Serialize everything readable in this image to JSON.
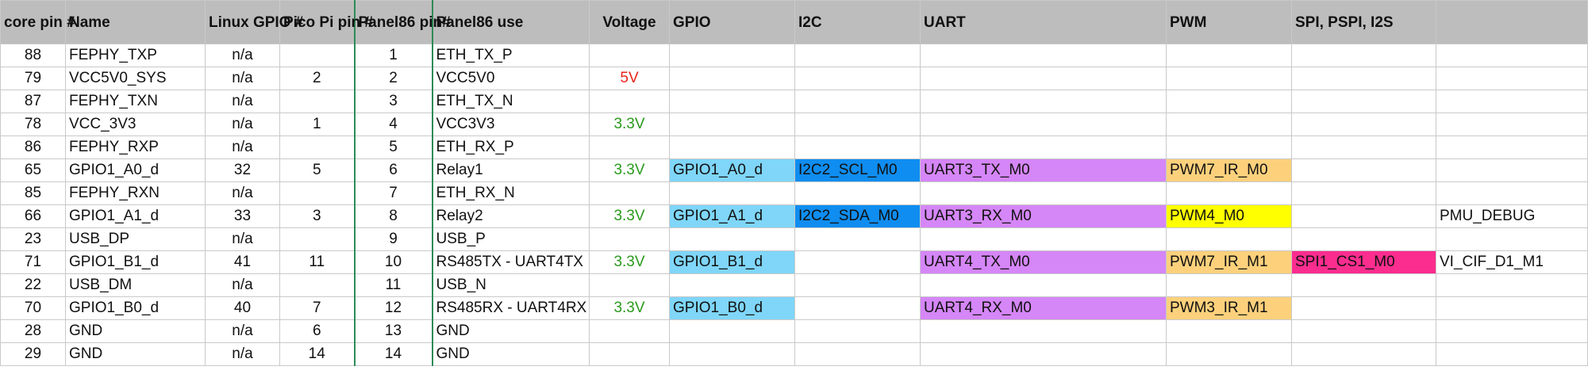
{
  "headers": {
    "core_pin": "core pin #",
    "name": "Name",
    "linux_gpio": "Linux GPIO #",
    "pico_pi": "Pico Pi pin #",
    "panel86_pin": "Panel86 pin#",
    "panel86_use": "Panel86 use",
    "voltage": "Voltage",
    "gpio": "GPIO",
    "i2c": "I2C",
    "uart": "UART",
    "pwm": "PWM",
    "spi": "SPI, PSPI, I2S",
    "extra": ""
  },
  "rows": [
    {
      "core": "88",
      "name": "FEPHY_TXP",
      "linux": "n/a",
      "pico": "",
      "p86": "1",
      "use": "ETH_TX_P",
      "voltage": "",
      "gpio": "",
      "i2c": "",
      "uart": "",
      "pwm": "",
      "spi": "",
      "extra": ""
    },
    {
      "core": "79",
      "name": "VCC5V0_SYS",
      "linux": "n/a",
      "pico": "2",
      "p86": "2",
      "use": "VCC5V0",
      "voltage": "5V",
      "gpio": "",
      "i2c": "",
      "uart": "",
      "pwm": "",
      "spi": "",
      "extra": ""
    },
    {
      "core": "87",
      "name": "FEPHY_TXN",
      "linux": "n/a",
      "pico": "",
      "p86": "3",
      "use": "ETH_TX_N",
      "voltage": "",
      "gpio": "",
      "i2c": "",
      "uart": "",
      "pwm": "",
      "spi": "",
      "extra": ""
    },
    {
      "core": "78",
      "name": "VCC_3V3",
      "linux": "n/a",
      "pico": "1",
      "p86": "4",
      "use": "VCC3V3",
      "voltage": "3.3V",
      "gpio": "",
      "i2c": "",
      "uart": "",
      "pwm": "",
      "spi": "",
      "extra": ""
    },
    {
      "core": "86",
      "name": "FEPHY_RXP",
      "linux": "n/a",
      "pico": "",
      "p86": "5",
      "use": "ETH_RX_P",
      "voltage": "",
      "gpio": "",
      "i2c": "",
      "uart": "",
      "pwm": "",
      "spi": "",
      "extra": ""
    },
    {
      "core": "65",
      "name": "GPIO1_A0_d",
      "linux": "32",
      "pico": "5",
      "p86": "6",
      "use": "Relay1",
      "voltage": "3.3V",
      "gpio": "GPIO1_A0_d",
      "i2c": "I2C2_SCL_M0",
      "uart": "UART3_TX_M0",
      "pwm": "PWM7_IR_M0",
      "spi": "",
      "extra": ""
    },
    {
      "core": "85",
      "name": "FEPHY_RXN",
      "linux": "n/a",
      "pico": "",
      "p86": "7",
      "use": "ETH_RX_N",
      "voltage": "",
      "gpio": "",
      "i2c": "",
      "uart": "",
      "pwm": "",
      "spi": "",
      "extra": ""
    },
    {
      "core": "66",
      "name": "GPIO1_A1_d",
      "linux": "33",
      "pico": "3",
      "p86": "8",
      "use": "Relay2",
      "voltage": "3.3V",
      "gpio": "GPIO1_A1_d",
      "i2c": "I2C2_SDA_M0",
      "uart": "UART3_RX_M0",
      "pwm": "PWM4_M0",
      "spi": "",
      "extra": "PMU_DEBUG"
    },
    {
      "core": "23",
      "name": "USB_DP",
      "linux": "n/a",
      "pico": "",
      "p86": "9",
      "use": "USB_P",
      "voltage": "",
      "gpio": "",
      "i2c": "",
      "uart": "",
      "pwm": "",
      "spi": "",
      "extra": ""
    },
    {
      "core": "71",
      "name": "GPIO1_B1_d",
      "linux": "41",
      "pico": "11",
      "p86": "10",
      "use": "RS485TX - UART4TX",
      "voltage": "3.3V",
      "gpio": "GPIO1_B1_d",
      "i2c": "",
      "uart": "UART4_TX_M0",
      "pwm": "PWM7_IR_M1",
      "spi": "SPI1_CS1_M0",
      "extra": "VI_CIF_D1_M1"
    },
    {
      "core": "22",
      "name": "USB_DM",
      "linux": "n/a",
      "pico": "",
      "p86": "11",
      "use": "USB_N",
      "voltage": "",
      "gpio": "",
      "i2c": "",
      "uart": "",
      "pwm": "",
      "spi": "",
      "extra": ""
    },
    {
      "core": "70",
      "name": "GPIO1_B0_d",
      "linux": "40",
      "pico": "7",
      "p86": "12",
      "use": "RS485RX - UART4RX",
      "voltage": "3.3V",
      "gpio": "GPIO1_B0_d",
      "i2c": "",
      "uart": "UART4_RX_M0",
      "pwm": "PWM3_IR_M1",
      "spi": "",
      "extra": ""
    },
    {
      "core": "28",
      "name": "GND",
      "linux": "n/a",
      "pico": "6",
      "p86": "13",
      "use": "GND",
      "voltage": "",
      "gpio": "",
      "i2c": "",
      "uart": "",
      "pwm": "",
      "spi": "",
      "extra": ""
    },
    {
      "core": "29",
      "name": "GND",
      "linux": "n/a",
      "pico": "14",
      "p86": "14",
      "use": "GND",
      "voltage": "",
      "gpio": "",
      "i2c": "",
      "uart": "",
      "pwm": "",
      "spi": "",
      "extra": ""
    }
  ],
  "colors": {
    "header_bg": "#bdbdbd",
    "gpio": "#7fd6f9",
    "i2c": "#0f8df0",
    "uart": "#d586f7",
    "pwm_orange": "#fdd17c",
    "pwm_yellow": "#ffff00",
    "spi": "#fb2d8e",
    "voltage_5v": "#e8251a",
    "voltage_3v3": "#2a9a1c"
  }
}
